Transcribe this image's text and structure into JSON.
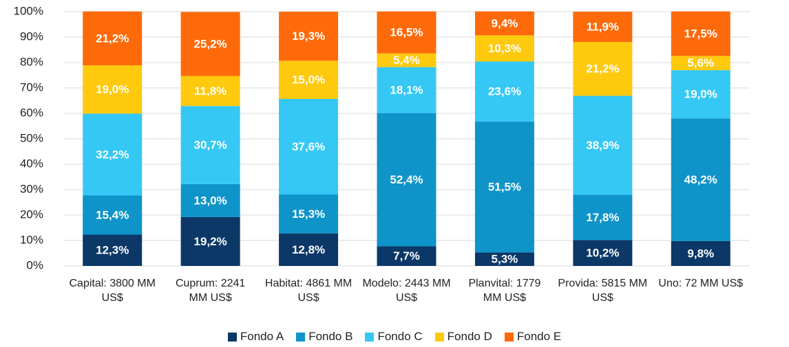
{
  "chart_data": {
    "type": "stacked_bar",
    "categories": [
      "Capital: 3800 MM US$",
      "Cuprum: 2241 MM US$",
      "Habitat: 4861 MM US$",
      "Modelo: 2443 MM US$",
      "Planvital: 1779 MM US$",
      "Provida: 5815 MM US$",
      "Uno: 72 MM US$"
    ],
    "series": [
      {
        "name": "Fondo A",
        "color": "#0b3866",
        "values": [
          12.3,
          19.2,
          12.8,
          7.7,
          5.3,
          10.2,
          9.8
        ],
        "value_labels": [
          "12,3%",
          "19,2%",
          "12,8%",
          "7,7%",
          "5,3%",
          "10,2%",
          "9,8%"
        ]
      },
      {
        "name": "Fondo B",
        "color": "#0e94c9",
        "values": [
          15.4,
          13.0,
          15.3,
          52.4,
          51.5,
          17.8,
          48.2
        ],
        "value_labels": [
          "15,4%",
          "13,0%",
          "15,3%",
          "52,4%",
          "51,5%",
          "17,8%",
          "48,2%"
        ]
      },
      {
        "name": "Fondo C",
        "color": "#35c8f5",
        "values": [
          32.2,
          30.7,
          37.6,
          18.1,
          23.6,
          38.9,
          19.0
        ],
        "value_labels": [
          "32,2%",
          "30,7%",
          "37,6%",
          "18,1%",
          "23,6%",
          "38,9%",
          "19,0%"
        ]
      },
      {
        "name": "Fondo D",
        "color": "#ffc90e",
        "values": [
          19.0,
          11.8,
          15.0,
          5.4,
          10.3,
          21.2,
          5.6
        ],
        "value_labels": [
          "19,0%",
          "11,8%",
          "15,0%",
          "5,4%",
          "10,3%",
          "21,2%",
          "5,6%"
        ]
      },
      {
        "name": "Fondo E",
        "color": "#fe6a0a",
        "values": [
          21.2,
          25.2,
          19.3,
          16.5,
          9.4,
          11.9,
          17.5
        ],
        "value_labels": [
          "21,2%",
          "25,2%",
          "19,3%",
          "16,5%",
          "9,4%",
          "11,9%",
          "17,5%"
        ]
      }
    ],
    "ylim": [
      0,
      100
    ],
    "yticks": [
      {
        "value": 0,
        "label": "0%"
      },
      {
        "value": 10,
        "label": "10%"
      },
      {
        "value": 20,
        "label": "20%"
      },
      {
        "value": 30,
        "label": "30%"
      },
      {
        "value": 40,
        "label": "40%"
      },
      {
        "value": 50,
        "label": "50%"
      },
      {
        "value": 60,
        "label": "60%"
      },
      {
        "value": 70,
        "label": "70%"
      },
      {
        "value": 80,
        "label": "80%"
      },
      {
        "value": 90,
        "label": "90%"
      },
      {
        "value": 100,
        "label": "100%"
      }
    ],
    "grid": true,
    "legend": "bottom"
  }
}
